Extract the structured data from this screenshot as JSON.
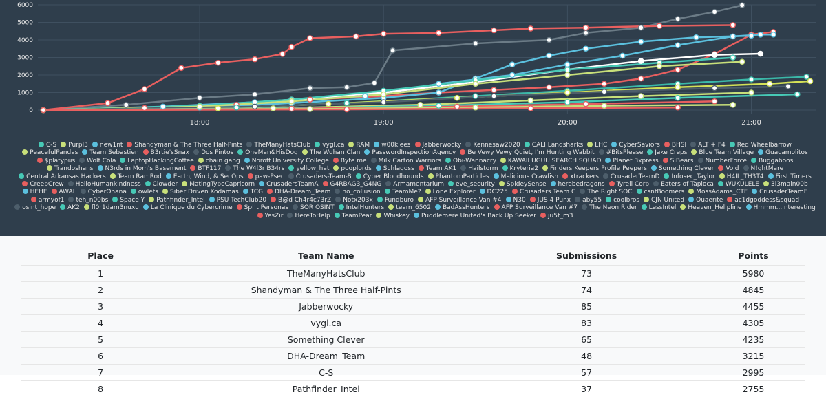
{
  "chart_data": {
    "type": "line",
    "title": "",
    "y_ticks": [
      0,
      1000,
      2000,
      3000,
      4000,
      5000,
      6000
    ],
    "x_ticks": [
      "18:00",
      "19:00",
      "20:00",
      "21:00"
    ],
    "x_domain_hours": [
      17.12,
      21.35
    ],
    "ylim": [
      0,
      6000
    ],
    "series": [
      {
        "name": "TheManyHatsClub",
        "color": "#6b7b86",
        "x": [
          17.15,
          17.6,
          18.0,
          18.3,
          18.6,
          18.8,
          18.95,
          19.05,
          19.5,
          19.9,
          20.1,
          20.4,
          20.6,
          20.8,
          20.95
        ],
        "y": [
          0,
          300,
          700,
          900,
          1250,
          1300,
          1550,
          3400,
          3800,
          4000,
          4400,
          4700,
          5200,
          5600,
          5980
        ]
      },
      {
        "name": "Shandyman & The Three Half-Pints",
        "color": "#e85f5f",
        "x": [
          17.15,
          17.5,
          17.7,
          17.9,
          18.1,
          18.3,
          18.45,
          18.5,
          18.6,
          18.85,
          19.0,
          19.3,
          19.6,
          19.8,
          20.1,
          20.5,
          20.9
        ],
        "y": [
          0,
          400,
          1200,
          2400,
          2700,
          2900,
          3200,
          3600,
          4100,
          4200,
          4350,
          4400,
          4550,
          4650,
          4700,
          4800,
          4845
        ]
      },
      {
        "name": "Jabberwocky",
        "color": "#e85f5f",
        "x": [
          17.15,
          17.7,
          18.2,
          18.6,
          19.0,
          19.3,
          19.6,
          19.9,
          20.2,
          20.4,
          20.6,
          20.8,
          21.0,
          21.12
        ],
        "y": [
          0,
          120,
          300,
          600,
          800,
          1000,
          1150,
          1300,
          1500,
          1800,
          2300,
          3200,
          4300,
          4455
        ]
      },
      {
        "name": "vygl.ca",
        "color": "#5bc0de",
        "x": [
          17.15,
          17.8,
          18.3,
          18.9,
          19.3,
          19.7,
          20.0,
          20.3,
          20.6,
          20.9,
          21.05,
          21.12
        ],
        "y": [
          0,
          200,
          450,
          800,
          1500,
          2000,
          2600,
          3100,
          3700,
          4200,
          4300,
          4305
        ]
      },
      {
        "name": "Something Clever",
        "color": "#5bc0de",
        "x": [
          17.15,
          18.0,
          18.5,
          19.0,
          19.3,
          19.5,
          19.7,
          19.9,
          20.1,
          20.4,
          20.7,
          21.0
        ],
        "y": [
          0,
          150,
          400,
          700,
          1000,
          1800,
          2600,
          3100,
          3500,
          3900,
          4150,
          4235
        ]
      },
      {
        "name": "DHA-Dream_Team",
        "color": "#ffffff",
        "x": [
          17.15,
          18.0,
          18.5,
          19.0,
          19.5,
          20.0,
          20.4,
          20.8,
          21.05
        ],
        "y": [
          0,
          200,
          600,
          1000,
          1600,
          2300,
          2800,
          3150,
          3215
        ]
      },
      {
        "name": "C-S",
        "color": "#47c9b6",
        "x": [
          17.15,
          18.0,
          18.5,
          19.0,
          19.5,
          20.0,
          20.5,
          20.9
        ],
        "y": [
          0,
          250,
          600,
          1100,
          1700,
          2300,
          2700,
          2995
        ]
      },
      {
        "name": "Pathfinder_Intel",
        "color": "#c8e07a",
        "x": [
          17.15,
          18.0,
          18.5,
          19.0,
          19.5,
          20.0,
          20.5,
          20.95
        ],
        "y": [
          0,
          200,
          500,
          900,
          1500,
          2000,
          2500,
          2755
        ]
      },
      {
        "name": "Hmmm...Interesting",
        "color": "#3bb8a8",
        "x": [
          17.15,
          18.2,
          18.8,
          19.5,
          20.0,
          20.6,
          21.0,
          21.3
        ],
        "y": [
          0,
          150,
          400,
          800,
          1100,
          1500,
          1750,
          1900
        ]
      },
      {
        "name": "Whiskey",
        "color": "#d4e157",
        "x": [
          17.15,
          18.1,
          18.7,
          19.4,
          20.0,
          20.6,
          21.1,
          21.32
        ],
        "y": [
          0,
          100,
          350,
          700,
          1000,
          1300,
          1500,
          1650
        ]
      },
      {
        "name": "Kennesaw2020",
        "color": "#4d5e6b",
        "x": [
          17.15,
          18.3,
          19.0,
          19.6,
          20.2,
          20.8,
          21.2
        ],
        "y": [
          0,
          200,
          450,
          800,
          1050,
          1250,
          1350
        ]
      },
      {
        "name": "Purpl3",
        "color": "#c8e07a",
        "x": [
          17.15,
          18.4,
          19.2,
          19.8,
          20.4,
          21.0
        ],
        "y": [
          0,
          100,
          300,
          550,
          800,
          1000
        ]
      },
      {
        "name": "LessIntel",
        "color": "#47c9b6",
        "x": [
          17.15,
          18.5,
          19.3,
          20.0,
          20.6,
          21.25
        ],
        "y": [
          0,
          100,
          250,
          450,
          700,
          900
        ]
      },
      {
        "name": "Red Wheelbarrow",
        "color": "#e85f5f",
        "x": [
          17.15,
          18.5,
          19.4,
          20.1,
          20.8
        ],
        "y": [
          0,
          80,
          200,
          350,
          500
        ]
      },
      {
        "name": "RAM",
        "color": "#c8e07a",
        "x": [
          17.15,
          18.6,
          19.5,
          20.2,
          20.9
        ],
        "y": [
          0,
          60,
          150,
          250,
          300
        ]
      },
      {
        "name": "ju5t_m3",
        "color": "#e85f5f",
        "x": [
          17.15,
          18.8,
          19.8,
          20.6
        ],
        "y": [
          0,
          40,
          100,
          150
        ]
      }
    ],
    "legend": [
      {
        "label": "C-S",
        "color": "#47c9b6"
      },
      {
        "label": "Purpl3",
        "color": "#c8e07a"
      },
      {
        "label": "new1nt",
        "color": "#5bc0de"
      },
      {
        "label": "Shandyman & The Three Half-Pints",
        "color": "#e85f5f"
      },
      {
        "label": "TheManyHatsClub",
        "color": "#4d5e6b"
      },
      {
        "label": "vygl.ca",
        "color": "#47c9b6"
      },
      {
        "label": "RAM",
        "color": "#c8e07a"
      },
      {
        "label": "w00kiees",
        "color": "#5bc0de"
      },
      {
        "label": "Jabberwocky",
        "color": "#e85f5f"
      },
      {
        "label": "Kennesaw2020",
        "color": "#4d5e6b"
      },
      {
        "label": "CALI Landsharks",
        "color": "#47c9b6"
      },
      {
        "label": "LHC",
        "color": "#c8e07a"
      },
      {
        "label": "CyberSaviors",
        "color": "#5bc0de"
      },
      {
        "label": "BHSI",
        "color": "#e85f5f"
      },
      {
        "label": "ALT + F4",
        "color": "#4d5e6b"
      },
      {
        "label": "Red Wheelbarrow",
        "color": "#47c9b6"
      },
      {
        "label": "PeacefulPandas",
        "color": "#c8e07a"
      },
      {
        "label": "Team Sebastien",
        "color": "#5bc0de"
      },
      {
        "label": "B3rtie'sSnax",
        "color": "#e85f5f"
      },
      {
        "label": "Dos Pintos",
        "color": "#4d5e6b"
      },
      {
        "label": "OneMan&HisDog",
        "color": "#47c9b6"
      },
      {
        "label": "The Wuhan Clan",
        "color": "#c8e07a"
      },
      {
        "label": "PasswordInspectionAgency",
        "color": "#5bc0de"
      },
      {
        "label": "Be Vewy Vewy Quiet, I'm Hunting Wabbit",
        "color": "#e85f5f"
      },
      {
        "label": "#BitsPlease",
        "color": "#4d5e6b"
      },
      {
        "label": "Jake Creps",
        "color": "#47c9b6"
      },
      {
        "label": "Blue Team Village",
        "color": "#c8e07a"
      },
      {
        "label": "Guacamolitos",
        "color": "#5bc0de"
      },
      {
        "label": "$platypus",
        "color": "#e85f5f"
      },
      {
        "label": "Wolf Cola",
        "color": "#4d5e6b"
      },
      {
        "label": "LaptopHackingCoffee",
        "color": "#47c9b6"
      },
      {
        "label": "chain gang",
        "color": "#c8e07a"
      },
      {
        "label": "Noroff University College",
        "color": "#5bc0de"
      },
      {
        "label": "Byte me",
        "color": "#e85f5f"
      },
      {
        "label": "Milk Carton Warriors",
        "color": "#4d5e6b"
      },
      {
        "label": "Obi-Wannacry",
        "color": "#47c9b6"
      },
      {
        "label": "KAWAII UGUU SEARCH SQUAD",
        "color": "#c8e07a"
      },
      {
        "label": "Planet 3xpress",
        "color": "#5bc0de"
      },
      {
        "label": "SiBears",
        "color": "#e85f5f"
      },
      {
        "label": "NumberForce",
        "color": "#4d5e6b"
      },
      {
        "label": "Buggaboos",
        "color": "#47c9b6"
      },
      {
        "label": "Trandoshans",
        "color": "#c8e07a"
      },
      {
        "label": "N3rds in Mom's Basement",
        "color": "#5bc0de"
      },
      {
        "label": "BTF117",
        "color": "#e85f5f"
      },
      {
        "label": "The W4l3r B34rs",
        "color": "#4d5e6b"
      },
      {
        "label": "yellow_hat",
        "color": "#47c9b6"
      },
      {
        "label": "pooplords",
        "color": "#c8e07a"
      },
      {
        "label": "Schlagoss",
        "color": "#5bc0de"
      },
      {
        "label": "Team AK1",
        "color": "#e85f5f"
      },
      {
        "label": "Hailstorm",
        "color": "#4d5e6b"
      },
      {
        "label": "Kryteria2",
        "color": "#47c9b6"
      },
      {
        "label": "Finders Keepers Profile Peepers",
        "color": "#c8e07a"
      },
      {
        "label": "Something Clever",
        "color": "#5bc0de"
      },
      {
        "label": "Void",
        "color": "#e85f5f"
      },
      {
        "label": "N!ghtMare",
        "color": "#4d5e6b"
      },
      {
        "label": "Central Arkansas Hackers",
        "color": "#47c9b6"
      },
      {
        "label": "Team RamRod",
        "color": "#c8e07a"
      },
      {
        "label": "Earth, Wind, & SecOps",
        "color": "#5bc0de"
      },
      {
        "label": "paw-Psec",
        "color": "#e85f5f"
      },
      {
        "label": "Crusaders-Team-B",
        "color": "#4d5e6b"
      },
      {
        "label": "Cyber Bloodhounds",
        "color": "#47c9b6"
      },
      {
        "label": "PhantomParticles",
        "color": "#c8e07a"
      },
      {
        "label": "Malicious Crawfish",
        "color": "#5bc0de"
      },
      {
        "label": "xtrackers",
        "color": "#e85f5f"
      },
      {
        "label": "CrusaderTeamD",
        "color": "#4d5e6b"
      },
      {
        "label": "Infosec_Taylor",
        "color": "#47c9b6"
      },
      {
        "label": "H4IL_TH3T4",
        "color": "#c8e07a"
      },
      {
        "label": "First Timers",
        "color": "#5bc0de"
      },
      {
        "label": "CreepCrew",
        "color": "#e85f5f"
      },
      {
        "label": "HelloHumankindness",
        "color": "#4d5e6b"
      },
      {
        "label": "Clowder",
        "color": "#47c9b6"
      },
      {
        "label": "MatingTypeCapricorn",
        "color": "#c8e07a"
      },
      {
        "label": "CrusadersTeamA",
        "color": "#5bc0de"
      },
      {
        "label": "G4RBAG3_G4NG",
        "color": "#e85f5f"
      },
      {
        "label": "Armamentarium",
        "color": "#4d5e6b"
      },
      {
        "label": "eve_security",
        "color": "#47c9b6"
      },
      {
        "label": "SpideySense",
        "color": "#c8e07a"
      },
      {
        "label": "herebedragons",
        "color": "#5bc0de"
      },
      {
        "label": "Tyrell Corp",
        "color": "#e85f5f"
      },
      {
        "label": "Eaters of Tapioca",
        "color": "#4d5e6b"
      },
      {
        "label": "WUKULELE",
        "color": "#47c9b6"
      },
      {
        "label": "3l3maln00b",
        "color": "#c8e07a"
      },
      {
        "label": "HEHE",
        "color": "#5bc0de"
      },
      {
        "label": "AWAL",
        "color": "#e85f5f"
      },
      {
        "label": "CyberOhana",
        "color": "#4d5e6b"
      },
      {
        "label": "owlets",
        "color": "#47c9b6"
      },
      {
        "label": "Siber Driven Kodamas",
        "color": "#c8e07a"
      },
      {
        "label": "TCG",
        "color": "#5bc0de"
      },
      {
        "label": "DHA-Dream_Team",
        "color": "#e85f5f"
      },
      {
        "label": "no_collusion",
        "color": "#4d5e6b"
      },
      {
        "label": "TeamMe?",
        "color": "#47c9b6"
      },
      {
        "label": "Lone Explorer",
        "color": "#c8e07a"
      },
      {
        "label": "DC225",
        "color": "#5bc0de"
      },
      {
        "label": "Crusaders Team C",
        "color": "#e85f5f"
      },
      {
        "label": "The Right SOC",
        "color": "#4d5e6b"
      },
      {
        "label": "csntBoomers",
        "color": "#47c9b6"
      },
      {
        "label": "MossAdams_CTF",
        "color": "#c8e07a"
      },
      {
        "label": "CrusaderTeamE",
        "color": "#5bc0de"
      },
      {
        "label": "armyof1",
        "color": "#e85f5f"
      },
      {
        "label": "teh_n00bs",
        "color": "#4d5e6b"
      },
      {
        "label": "Space Y",
        "color": "#47c9b6"
      },
      {
        "label": "Pathfinder_Intel",
        "color": "#c8e07a"
      },
      {
        "label": "PSU TechClub20",
        "color": "#5bc0de"
      },
      {
        "label": "B@d Ch4r4c73rZ",
        "color": "#e85f5f"
      },
      {
        "label": "Notx203x",
        "color": "#4d5e6b"
      },
      {
        "label": "Fundbüro",
        "color": "#47c9b6"
      },
      {
        "label": "AFP Surveillance Van #4",
        "color": "#c8e07a"
      },
      {
        "label": "N30",
        "color": "#5bc0de"
      },
      {
        "label": "JUS 4 Punx",
        "color": "#e85f5f"
      },
      {
        "label": "aby55",
        "color": "#4d5e6b"
      },
      {
        "label": "coolbros",
        "color": "#47c9b6"
      },
      {
        "label": "CJN United",
        "color": "#c8e07a"
      },
      {
        "label": "Quaerite",
        "color": "#5bc0de"
      },
      {
        "label": "ac1dgoddess&squad",
        "color": "#e85f5f"
      },
      {
        "label": "osint_hope",
        "color": "#4d5e6b"
      },
      {
        "label": "AK2",
        "color": "#47c9b6"
      },
      {
        "label": "fl0r1dam3nuxu",
        "color": "#c8e07a"
      },
      {
        "label": "La Clinique du Cybercrime",
        "color": "#5bc0de"
      },
      {
        "label": "Spl!t Personas",
        "color": "#e85f5f"
      },
      {
        "label": "SOR OSINT",
        "color": "#4d5e6b"
      },
      {
        "label": "IntelHunters",
        "color": "#47c9b6"
      },
      {
        "label": "team_6502",
        "color": "#c8e07a"
      },
      {
        "label": "BadAssHunters",
        "color": "#5bc0de"
      },
      {
        "label": "AFP Surveillance Van #7",
        "color": "#e85f5f"
      },
      {
        "label": "The Neon Rider",
        "color": "#4d5e6b"
      },
      {
        "label": "LessIntel",
        "color": "#47c9b6"
      },
      {
        "label": "Heaven_Hellpline",
        "color": "#c8e07a"
      },
      {
        "label": "Hmmm...Interesting",
        "color": "#5bc0de"
      },
      {
        "label": "YesZir",
        "color": "#e85f5f"
      },
      {
        "label": "HereToHelp",
        "color": "#4d5e6b"
      },
      {
        "label": "TeamPear",
        "color": "#47c9b6"
      },
      {
        "label": "Whiskey",
        "color": "#c8e07a"
      },
      {
        "label": "Puddlemere United's Back Up Seeker",
        "color": "#5bc0de"
      },
      {
        "label": "ju5t_m3",
        "color": "#e85f5f"
      }
    ]
  },
  "scoreboard": {
    "headers": {
      "place": "Place",
      "team": "Team Name",
      "submissions": "Submissions",
      "points": "Points"
    },
    "rows": [
      {
        "place": "1",
        "team": "TheManyHatsClub",
        "submissions": "73",
        "points": "5980"
      },
      {
        "place": "2",
        "team": "Shandyman & The Three Half-Pints",
        "submissions": "74",
        "points": "4845"
      },
      {
        "place": "3",
        "team": "Jabberwocky",
        "submissions": "85",
        "points": "4455"
      },
      {
        "place": "4",
        "team": "vygl.ca",
        "submissions": "83",
        "points": "4305"
      },
      {
        "place": "5",
        "team": "Something Clever",
        "submissions": "65",
        "points": "4235"
      },
      {
        "place": "6",
        "team": "DHA-Dream_Team",
        "submissions": "48",
        "points": "3215"
      },
      {
        "place": "7",
        "team": "C-S",
        "submissions": "57",
        "points": "2995"
      },
      {
        "place": "8",
        "team": "Pathfinder_Intel",
        "submissions": "37",
        "points": "2755"
      }
    ]
  }
}
